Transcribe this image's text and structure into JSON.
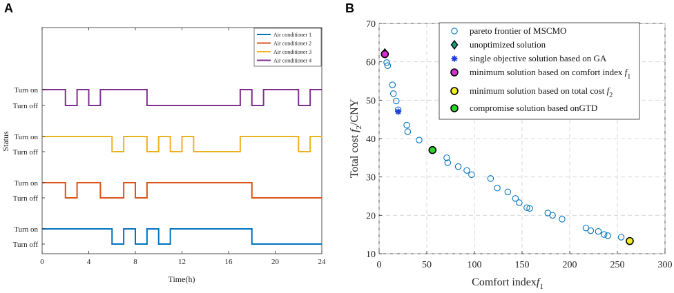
{
  "chart_data": [
    {
      "panel": "A",
      "type": "line",
      "title": "",
      "xlabel": "Time(h)",
      "ylabel": "Status",
      "xlim": [
        0,
        24
      ],
      "xticks": [
        "0",
        "4",
        "8",
        "12",
        "16",
        "20",
        "24"
      ],
      "ytick_labels": [
        "Turn on",
        "Turn off",
        "Turn on",
        "Turn off",
        "Turn on",
        "Turn off",
        "Turn on",
        "Turn off"
      ],
      "legend": "top-right",
      "series": [
        {
          "name": "Air conditioner 1",
          "color": "#0072BD",
          "off_intervals": [
            [
              6,
              7
            ],
            [
              8,
              9
            ],
            [
              10,
              11
            ],
            [
              18,
              24
            ]
          ]
        },
        {
          "name": "Air conditioner 2",
          "color": "#D95319",
          "off_intervals": [
            [
              2,
              3
            ],
            [
              5,
              7
            ],
            [
              8,
              9
            ],
            [
              18,
              24
            ]
          ]
        },
        {
          "name": "Air conditioner 3",
          "color": "#EDB120",
          "off_intervals": [
            [
              6,
              7
            ],
            [
              9,
              10
            ],
            [
              11,
              12
            ],
            [
              13,
              17
            ],
            [
              22,
              23
            ]
          ]
        },
        {
          "name": "Air conditioner 4",
          "color": "#7E2F8E",
          "off_intervals": [
            [
              2,
              3
            ],
            [
              4,
              5
            ],
            [
              9,
              17
            ],
            [
              18,
              19
            ],
            [
              22,
              23
            ]
          ]
        }
      ]
    },
    {
      "panel": "B",
      "type": "scatter",
      "title": "",
      "xlabel": "Comfort index",
      "xlabel_sym": "f",
      "xlabel_sub": "1",
      "ylabel": "Total cost ",
      "ylabel_sym": "f",
      "ylabel_sub": "2",
      "ylabel_tail": "/CNY",
      "xlim": [
        0,
        300
      ],
      "ylim": [
        10,
        70
      ],
      "xticks": [
        "0",
        "50",
        "100",
        "150",
        "200",
        "250",
        "300"
      ],
      "yticks": [
        "10",
        "20",
        "30",
        "40",
        "50",
        "60",
        "70"
      ],
      "grid": true,
      "legend": "top-right",
      "pareto_name": "pareto frontier of MSCMO",
      "pareto": [
        [
          6,
          62.2
        ],
        [
          8,
          59.8
        ],
        [
          9,
          59.0
        ],
        [
          14,
          54.0
        ],
        [
          15,
          51.7
        ],
        [
          18,
          49.8
        ],
        [
          20,
          47.5
        ],
        [
          29,
          43.5
        ],
        [
          30,
          41.8
        ],
        [
          42,
          39.6
        ],
        [
          56,
          37.0
        ],
        [
          71,
          35.0
        ],
        [
          72,
          33.7
        ],
        [
          83,
          32.7
        ],
        [
          92,
          31.7
        ],
        [
          97,
          30.6
        ],
        [
          117,
          29.6
        ],
        [
          124,
          27.1
        ],
        [
          135,
          26.1
        ],
        [
          143,
          24.4
        ],
        [
          147,
          23.3
        ],
        [
          155,
          22.0
        ],
        [
          158,
          21.8
        ],
        [
          177,
          20.6
        ],
        [
          182,
          20.0
        ],
        [
          192,
          19.0
        ],
        [
          217,
          16.7
        ],
        [
          222,
          16.0
        ],
        [
          230,
          15.8
        ],
        [
          236,
          15.0
        ],
        [
          240,
          14.7
        ],
        [
          254,
          14.3
        ],
        [
          263,
          13.3
        ]
      ],
      "special": [
        {
          "name": "unoptimized solution",
          "marker": "diamond",
          "color": "#1b9e77",
          "x": 6,
          "y": 62.3
        },
        {
          "name": "single objective solution based on GA",
          "marker": "star",
          "color": "#1f3fd6",
          "x": 20,
          "y": 47.0
        },
        {
          "name": "minimum solution based on comfort index ",
          "sym": "f",
          "sub": "1",
          "marker": "circle",
          "color": "#d62bd6",
          "x": 6,
          "y": 62.0
        },
        {
          "name": "minimum solution based on total cost ",
          "sym": "f",
          "sub": "2",
          "marker": "circle",
          "color": "#f2ee1c",
          "x": 263,
          "y": 13.3
        },
        {
          "name": "compromise solution based onGTD",
          "marker": "circle",
          "color": "#27d627",
          "x": 56,
          "y": 37.0
        }
      ]
    }
  ],
  "panel_letters": [
    "A",
    "B"
  ]
}
